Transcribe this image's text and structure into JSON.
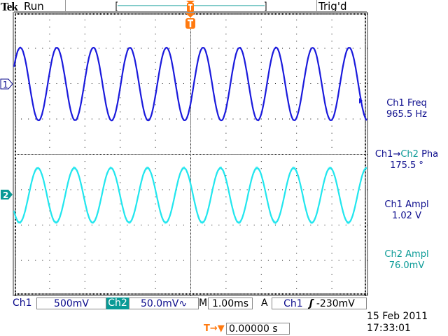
{
  "header": {
    "brand": "Tek",
    "run_state": "Run",
    "trigger_state": "Trig'd",
    "trigger_marker": "T"
  },
  "channels": [
    {
      "id": "1",
      "label": "Ch1",
      "scale": "500mV",
      "color": "#1a1adc"
    },
    {
      "id": "2",
      "label": "Ch2",
      "scale": "50.0mV",
      "bandwidth_icon": "∿",
      "color": "#22e6ee"
    }
  ],
  "timebase": {
    "prefix": "M",
    "value": "1.00ms"
  },
  "trigger": {
    "mode": "A",
    "source": "Ch1",
    "slope_icon": "rising-edge",
    "slope_glyph": "ʃ",
    "level": "-230mV",
    "position_icon": "T→▼",
    "position": "0.00000 s"
  },
  "measurements": [
    {
      "label": "Ch1 Freq",
      "value": "965.5 Hz"
    },
    {
      "label_a": "Ch1",
      "arrow": "→",
      "label_b": "Ch2",
      "label_c": " Pha",
      "value": "175.5 °"
    },
    {
      "label": "Ch1 Ampl",
      "value": "1.02 V"
    },
    {
      "label": "Ch2 Ampl",
      "value": "76.0mV"
    }
  ],
  "datetime": {
    "date": "15 Feb  2011",
    "time": "17:33:01"
  },
  "colors": {
    "ch1": "#1a1adc",
    "ch2": "#22e6ee",
    "ch2_text": "#0a9a96",
    "text_blue": "#0b0b8c",
    "trigger": "#ff7a10",
    "grid": "#000000"
  }
}
